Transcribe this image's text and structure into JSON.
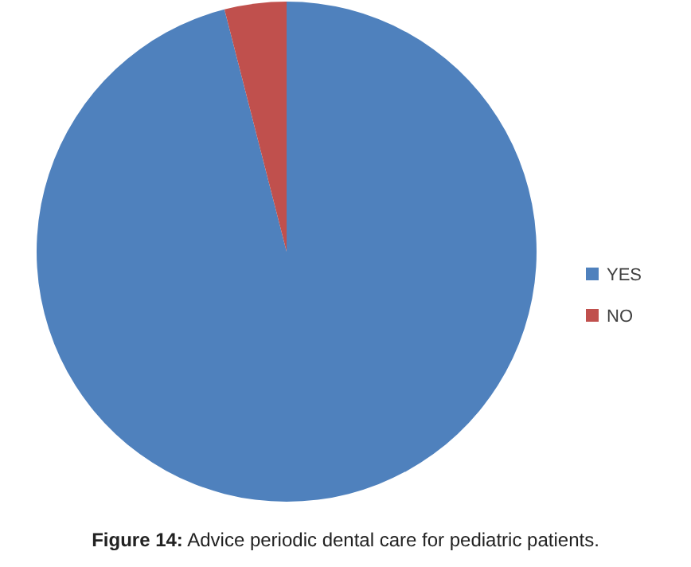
{
  "chart_data": {
    "type": "pie",
    "title": "Figure 14: Advice periodic dental care for pediatric patients.",
    "categories": [
      "YES",
      "NO"
    ],
    "values": [
      96,
      4
    ],
    "colors": [
      "#4f81bd",
      "#c0504d"
    ],
    "legend": "right"
  }
}
